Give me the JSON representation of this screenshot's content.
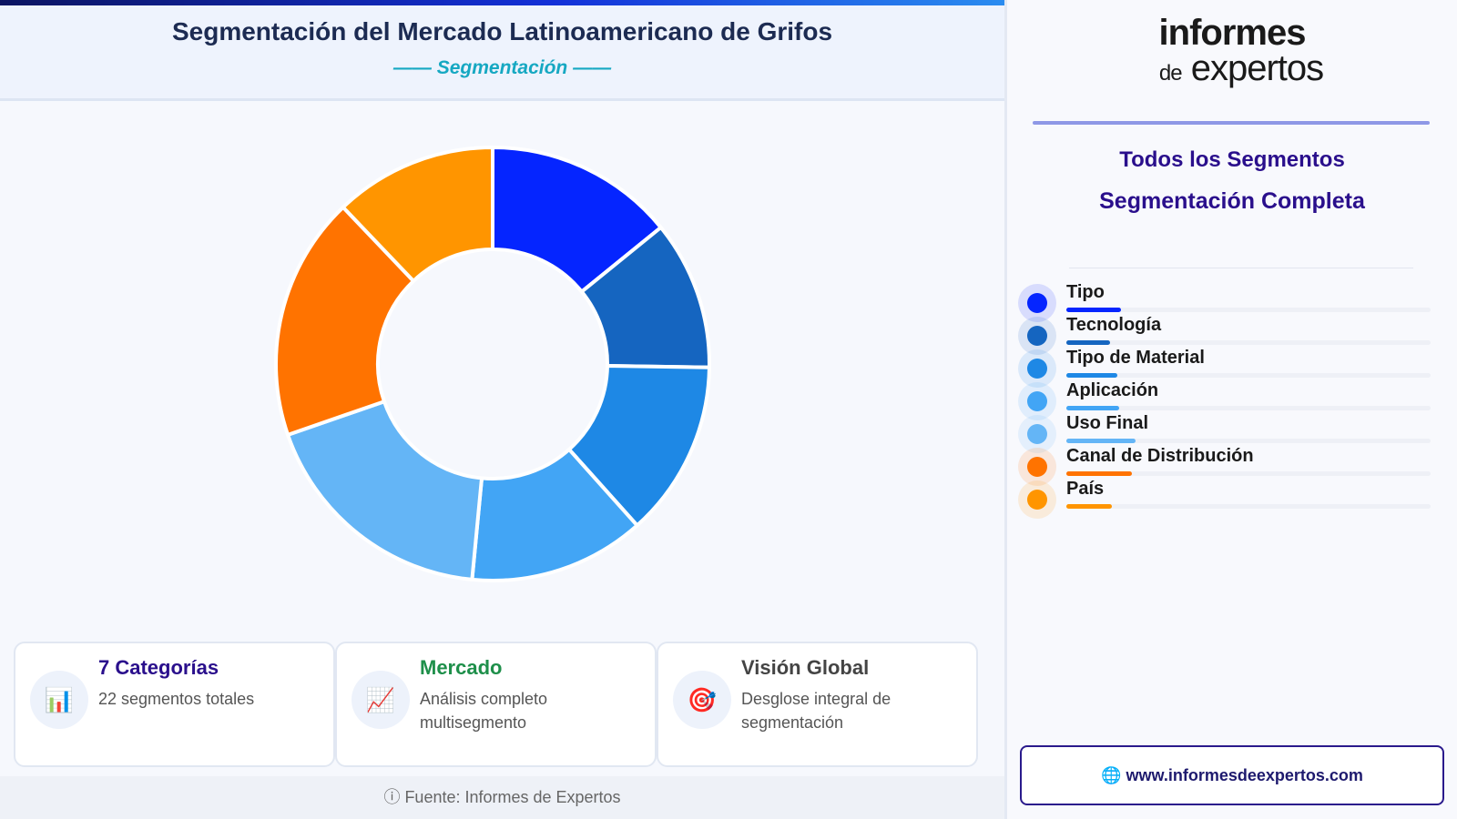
{
  "header": {
    "title": "Segmentación del Mercado Latinoamericano de Grifos",
    "subtitle": "—— Segmentación ——"
  },
  "chart_data": {
    "type": "pie",
    "variant": "donut",
    "categories": [
      "Tipo",
      "Tecnología",
      "Tipo de Material",
      "Aplicación",
      "Uso Final",
      "Canal de Distribución",
      "País"
    ],
    "values": [
      14,
      11,
      13,
      13,
      18,
      18,
      12
    ],
    "colors": [
      "#0525ff",
      "#1565c0",
      "#1e88e5",
      "#42a5f5",
      "#64b5f6",
      "#ff7300",
      "#ff9500"
    ]
  },
  "cards": [
    {
      "icon": "bar-chart-icon",
      "glyph": "📊",
      "title": "7 Categorías",
      "desc": "22 segmentos totales",
      "color": "#2a0f8c"
    },
    {
      "icon": "trend-chart-icon",
      "glyph": "📈",
      "title": "Mercado",
      "desc": "Análisis completo multisegmento",
      "color": "#1e8f4a"
    },
    {
      "icon": "target-icon",
      "glyph": "🎯",
      "title": "Visión Global",
      "desc": "Desglose integral de segmentación",
      "color": "#444444"
    }
  ],
  "footer": {
    "text": "ⓘ Fuente: Informes de Expertos"
  },
  "sidebar": {
    "logo_line1": "informes",
    "logo_de": "de",
    "logo_line2": "expertos",
    "heading1": "Todos los Segmentos",
    "heading2": "Segmentación Completa",
    "legend": [
      {
        "label": "Tipo",
        "color": "#0525ff",
        "bar": 0.15
      },
      {
        "label": "Tecnología",
        "color": "#1565c0",
        "bar": 0.12
      },
      {
        "label": "Tipo de Material",
        "color": "#1e88e5",
        "bar": 0.14
      },
      {
        "label": "Aplicación",
        "color": "#42a5f5",
        "bar": 0.145
      },
      {
        "label": "Uso Final",
        "color": "#64b5f6",
        "bar": 0.19
      },
      {
        "label": "Canal de Distribución",
        "color": "#ff7300",
        "bar": 0.18
      },
      {
        "label": "País",
        "color": "#ff9500",
        "bar": 0.125
      }
    ],
    "website": "www.informesdeexpertos.com"
  }
}
